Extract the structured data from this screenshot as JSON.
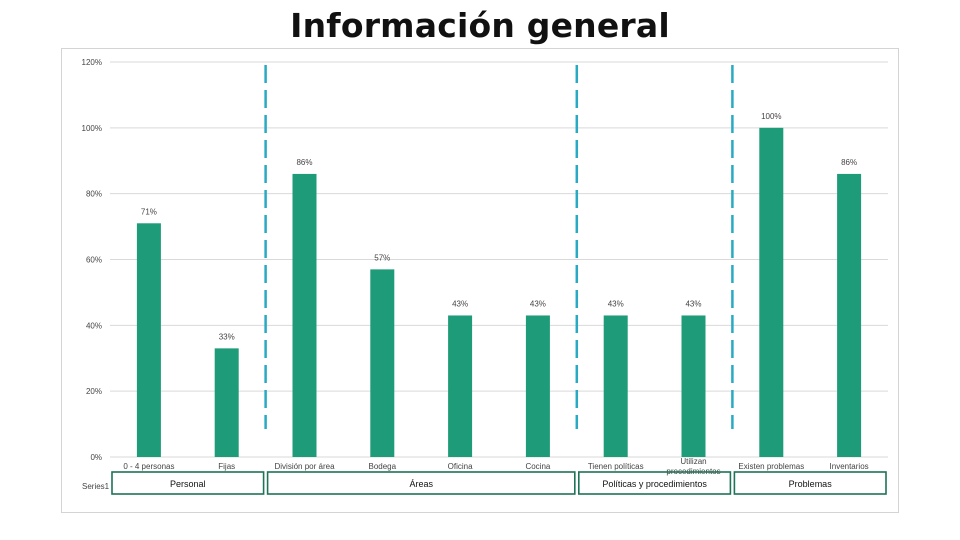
{
  "title": "Información general",
  "chart_data": {
    "type": "bar",
    "title": "Información general",
    "categories": [
      "0 - 4 personas",
      "Fijas",
      "División por área",
      "Bodega",
      "Oficina",
      "Cocina",
      "Tienen políticas",
      "Utilizan procedimientos",
      "Existen problemas",
      "Inventarios"
    ],
    "series": [
      {
        "name": "Series1",
        "values": [
          71,
          33,
          86,
          57,
          43,
          43,
          43,
          43,
          100,
          86
        ],
        "labels": [
          "71%",
          "33%",
          "86%",
          "57%",
          "43%",
          "43%",
          "43%",
          "43%",
          "100%",
          "86%"
        ]
      }
    ],
    "groups": [
      {
        "label": "Personal",
        "categories": [
          "0 - 4 personas",
          "Fijas"
        ]
      },
      {
        "label": "Áreas",
        "categories": [
          "División por área",
          "Bodega",
          "Oficina",
          "Cocina"
        ]
      },
      {
        "label": "Políticas y procedimientos",
        "categories": [
          "Tienen políticas",
          "Utilizan procedimientos"
        ]
      },
      {
        "label": "Problemas",
        "categories": [
          "Existen problemas",
          "Inventarios"
        ]
      }
    ],
    "yticks": [
      "0%",
      "20%",
      "40%",
      "60%",
      "80%",
      "100%",
      "120%"
    ],
    "ylim": [
      0,
      120
    ],
    "xlabel": "",
    "ylabel": "",
    "grid": true,
    "legend": "none",
    "colors": {
      "bar": "#1e9b78",
      "separator": "#2aaac2",
      "gridline": "#d9d9d9",
      "axis_text": "#444444",
      "group_border": "#1e7358"
    }
  }
}
